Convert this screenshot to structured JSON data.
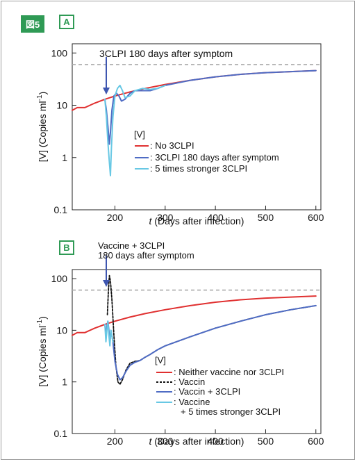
{
  "figure_label": "図5",
  "panels": [
    {
      "letter": "A"
    },
    {
      "letter": "B"
    }
  ],
  "chart_data": [
    {
      "type": "line",
      "panel": "A",
      "y_scale": "log",
      "xlim": [
        115,
        610
      ],
      "ylim": [
        0.1,
        150
      ],
      "xticks": [
        200,
        300,
        400,
        500,
        600
      ],
      "yticks": [
        0.1,
        1,
        10,
        100
      ],
      "ytick_labels": [
        "0.1",
        "1",
        "10",
        "100"
      ],
      "xlabel_italic": "t",
      "xlabel": "(Days after infection)",
      "ylabel": "[V]  (Copies ml⁻¹)",
      "ylabel_text": "[V]   (Copies ml",
      "ylabel_sup": "-1",
      "reference_line": {
        "y": 60,
        "style": "dashed",
        "color": "#aaaaaa"
      },
      "annotation": {
        "text": "3CLPI 180 days after symptom",
        "arrow_x": 180
      },
      "legend_title": "[V]",
      "series": [
        {
          "name": ": No 3CLPI",
          "color": "#e03030",
          "x": [
            115,
            125,
            140,
            160,
            180,
            200,
            230,
            260,
            300,
            350,
            400,
            450,
            500,
            550,
            600
          ],
          "y": [
            8,
            9,
            9,
            11,
            13,
            15,
            18,
            21,
            25,
            30,
            35,
            39,
            42,
            44,
            46
          ]
        },
        {
          "name": ": 3CLPI 180 days after symptom",
          "color": "#4f6cc4",
          "x": [
            180,
            183,
            186,
            189,
            191,
            194,
            198,
            203,
            208,
            213,
            220,
            230,
            240,
            255,
            270,
            285,
            300,
            350,
            400,
            450,
            500,
            550,
            600
          ],
          "y": [
            13,
            8,
            4,
            1.8,
            3,
            8,
            15,
            17,
            15,
            12,
            13,
            17,
            19,
            19,
            19,
            21,
            24,
            30,
            35,
            39,
            42,
            44,
            46
          ]
        },
        {
          "name": ": 5 times stronger 3CLPI",
          "color": "#68c8e4",
          "x": [
            180,
            183,
            186,
            189,
            191,
            193,
            196,
            200,
            205,
            210,
            215,
            220,
            230,
            240,
            255,
            270,
            285,
            300
          ],
          "y": [
            13,
            6,
            2,
            0.8,
            0.45,
            1.5,
            6,
            15,
            21,
            24,
            19,
            14,
            15,
            19,
            21,
            20,
            21,
            24
          ]
        }
      ]
    },
    {
      "type": "line",
      "panel": "B",
      "y_scale": "log",
      "xlim": [
        115,
        610
      ],
      "ylim": [
        0.1,
        150
      ],
      "xticks": [
        200,
        300,
        400,
        500,
        600
      ],
      "yticks": [
        0.1,
        1,
        10,
        100
      ],
      "ytick_labels": [
        "0.1",
        "1",
        "10",
        "100"
      ],
      "xlabel_italic": "t",
      "xlabel": "(Days after infection)",
      "ylabel": "[V]  (Copies ml⁻¹)",
      "ylabel_text": "[V]   (Copies ml",
      "ylabel_sup": "-1",
      "reference_line": {
        "y": 60,
        "style": "dashed",
        "color": "#aaaaaa"
      },
      "annotation": {
        "text_line1": "Vaccine + 3CLPI",
        "text_line2": "180 days after symptom",
        "arrow_x": 180
      },
      "legend_title": "[V]",
      "series": [
        {
          "name": ": Neither vaccine nor 3CLPI",
          "color": "#e03030",
          "dash": false,
          "x": [
            115,
            125,
            140,
            160,
            180,
            200,
            230,
            260,
            300,
            350,
            400,
            450,
            500,
            550,
            600
          ],
          "y": [
            8,
            9,
            9,
            11,
            13,
            15,
            18,
            21,
            25,
            30,
            35,
            39,
            42,
            44,
            46
          ]
        },
        {
          "name": ": Vaccin",
          "color": "#111111",
          "dash": true,
          "x": [
            185,
            187,
            189,
            191,
            194,
            198,
            202,
            206,
            210,
            215,
            222,
            230,
            240,
            250,
            260,
            270,
            285,
            300,
            350,
            400,
            450,
            500,
            550,
            600
          ],
          "y": [
            20,
            60,
            115,
            90,
            40,
            8,
            2,
            1,
            0.9,
            1.1,
            1.7,
            2.3,
            2.5,
            2.6,
            3,
            3.4,
            4.2,
            5,
            7.5,
            11,
            15,
            20,
            25,
            30
          ]
        },
        {
          "name": ": Vaccin + 3CLPI",
          "color": "#4f6cc4",
          "dash": false,
          "x": [
            180,
            182,
            184,
            186,
            188,
            190,
            192,
            196,
            200,
            205,
            210,
            215,
            222,
            230,
            240,
            250,
            260,
            270,
            285,
            300,
            350,
            400,
            450,
            500,
            550,
            600
          ],
          "y": [
            13,
            8,
            12,
            15,
            10,
            6,
            10,
            6,
            2.5,
            1.4,
            1.1,
            1.2,
            1.6,
            2.1,
            2.4,
            2.6,
            3,
            3.4,
            4.2,
            5,
            7.5,
            11,
            15,
            20,
            25,
            30
          ]
        },
        {
          "name_line1": ": Vaccine",
          "name_line2": "+ 5 times stronger 3CLPI",
          "name": ": Vaccine + 5 times stronger 3CLPI",
          "color": "#68c8e4",
          "dash": false,
          "x": [
            180,
            182,
            184,
            186,
            188,
            190,
            192,
            196
          ],
          "y": [
            13,
            6,
            10,
            15,
            8,
            5,
            10,
            6
          ]
        }
      ]
    }
  ]
}
